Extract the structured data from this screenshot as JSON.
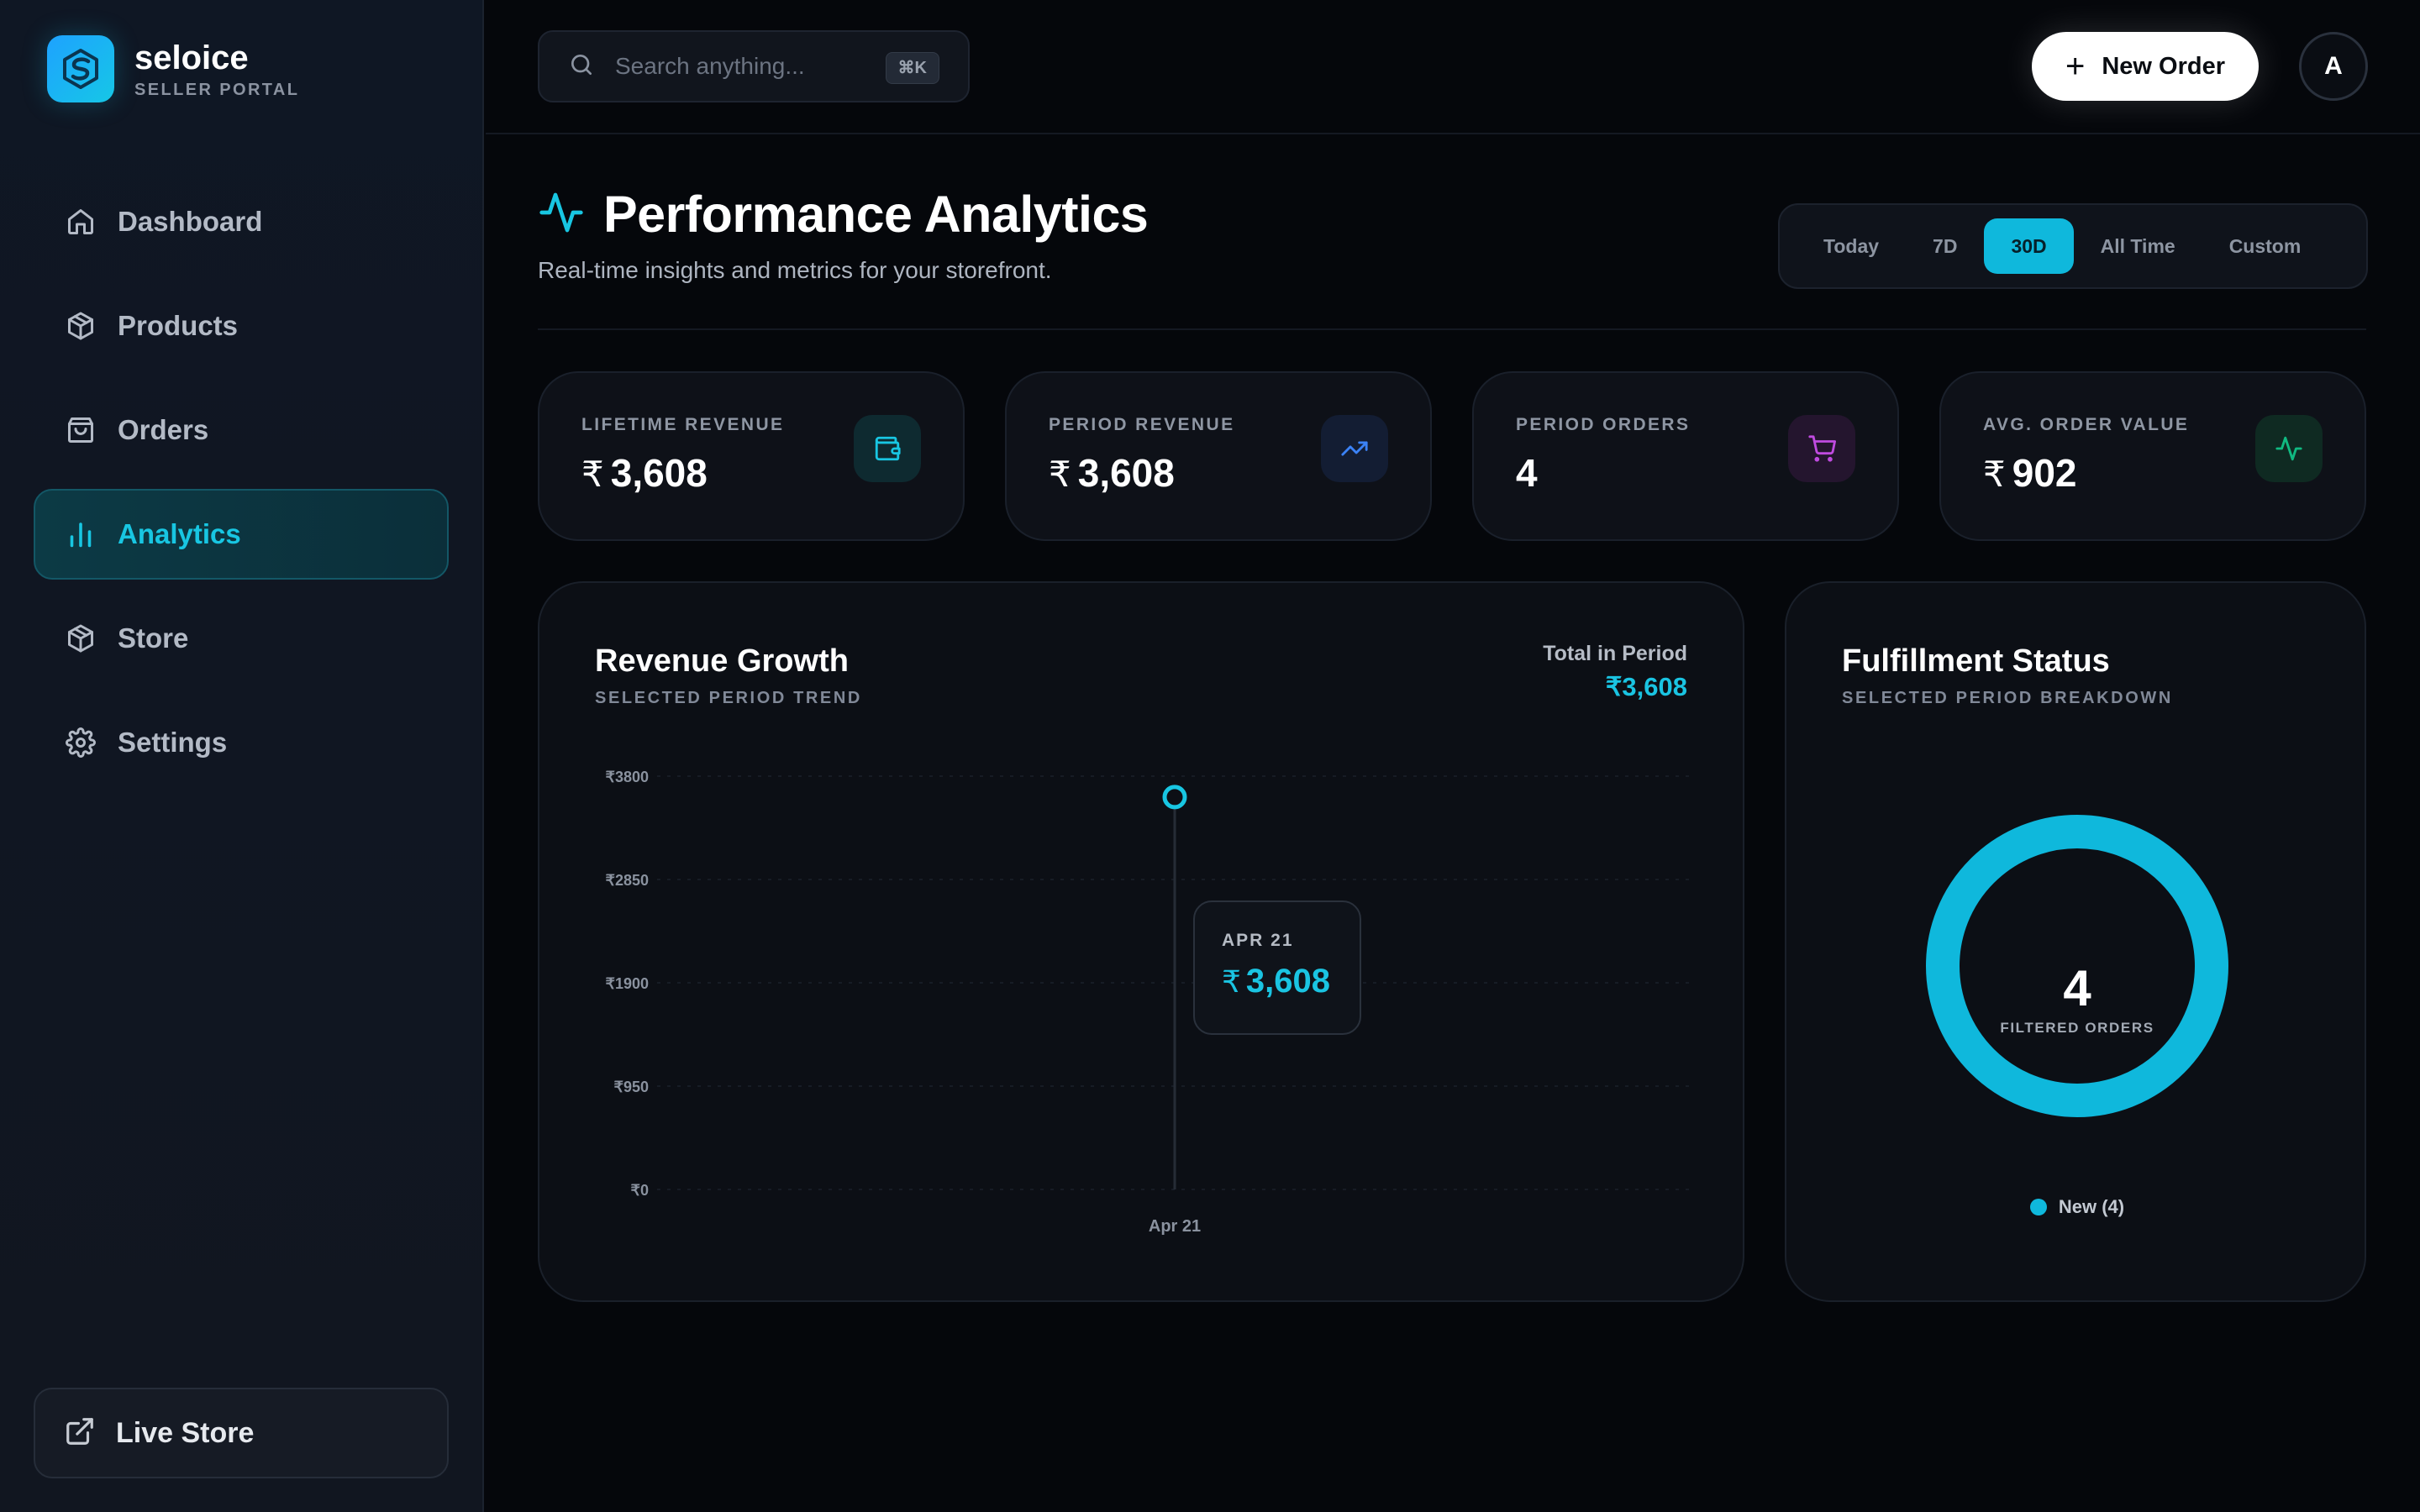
{
  "brand": {
    "name": "seloice",
    "subtitle": "SELLER PORTAL"
  },
  "sidebar": {
    "items": [
      {
        "label": "Dashboard",
        "icon": "home-icon",
        "active": false
      },
      {
        "label": "Products",
        "icon": "box-icon",
        "active": false
      },
      {
        "label": "Orders",
        "icon": "shopping-bag-icon",
        "active": false
      },
      {
        "label": "Analytics",
        "icon": "bar-chart-icon",
        "active": true
      },
      {
        "label": "Store",
        "icon": "box-icon",
        "active": false
      },
      {
        "label": "Settings",
        "icon": "gear-icon",
        "active": false
      }
    ],
    "live_store": "Live Store"
  },
  "topbar": {
    "search_placeholder": "Search anything...",
    "search_shortcut": "⌘K",
    "new_order_label": "New Order",
    "avatar_initial": "A"
  },
  "header": {
    "title": "Performance Analytics",
    "subtitle": "Real-time insights and metrics for your storefront.",
    "ranges": [
      "Today",
      "7D",
      "30D",
      "All Time",
      "Custom"
    ],
    "active_range": "30D"
  },
  "stats": [
    {
      "label": "LIFETIME REVENUE",
      "currency": "₹",
      "value": "3,608",
      "icon": "wallet-icon",
      "accent": "#18c6e2"
    },
    {
      "label": "PERIOD REVENUE",
      "currency": "₹",
      "value": "3,608",
      "icon": "trending-up-icon",
      "accent": "#3b82f6"
    },
    {
      "label": "PERIOD ORDERS",
      "currency": "",
      "value": "4",
      "icon": "cart-icon",
      "accent": "#c04be0"
    },
    {
      "label": "AVG. ORDER VALUE",
      "currency": "₹",
      "value": "902",
      "icon": "activity-icon",
      "accent": "#10b981"
    }
  ],
  "revenue": {
    "title": "Revenue Growth",
    "subtitle": "SELECTED PERIOD TREND",
    "total_label": "Total in Period",
    "total_value": "₹3,608",
    "tooltip": {
      "date": "APR 21",
      "currency": "₹",
      "value": "3,608"
    }
  },
  "fulfillment": {
    "title": "Fulfillment Status",
    "subtitle": "SELECTED PERIOD BREAKDOWN",
    "count": "4",
    "count_label": "FILTERED ORDERS",
    "legend": "New (4)"
  },
  "chart_data": [
    {
      "type": "line",
      "x": [
        "Apr 21"
      ],
      "series": [
        {
          "values": [
            3608
          ]
        }
      ],
      "yticks": [
        "₹3800",
        "₹2850",
        "₹1900",
        "₹950",
        "₹0"
      ],
      "ylim": [
        0,
        3800
      ],
      "grid": true
    },
    {
      "type": "pie",
      "categories": [
        "New (4)"
      ],
      "values": [
        4
      ],
      "colors": [
        "#0fb8dc"
      ]
    }
  ],
  "colors": {
    "accent": "#0fb8dc",
    "background": "#05070b"
  }
}
